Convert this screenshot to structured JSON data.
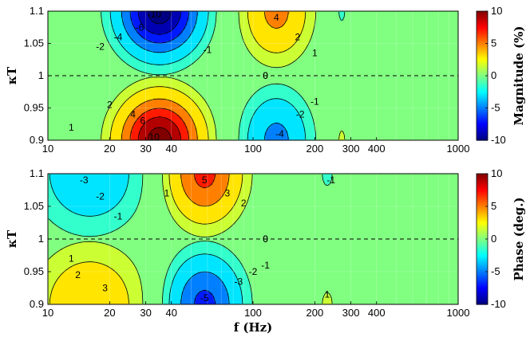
{
  "chart_data": [
    {
      "type": "heatmap",
      "name": "magnitude",
      "x_scale": "log",
      "xlim": [
        10,
        1000
      ],
      "ylim": [
        0.9,
        1.1
      ],
      "xticks": [
        "10",
        "20",
        "30",
        "40",
        "100",
        "200",
        "300",
        "400",
        "1000"
      ],
      "xtick_values": [
        10,
        20,
        30,
        40,
        100,
        200,
        300,
        400,
        1000
      ],
      "yticks": [
        "0.9",
        "0.95",
        "1",
        "1.05",
        "1.1"
      ],
      "ylabel": "κT",
      "xlabel": "",
      "colorbar_label": "Magnitude (%)",
      "colorbar_ticks": [
        "10",
        "5",
        "0",
        "-5",
        "-10"
      ],
      "clim": [
        -10,
        10
      ],
      "grid": true,
      "reference_line_label": "0",
      "contour_labels": [
        {
          "text": "-10",
          "f": 33,
          "k": 1.095
        },
        {
          "text": "-6",
          "f": 28,
          "k": 1.075
        },
        {
          "text": "-4",
          "f": 22,
          "k": 1.06
        },
        {
          "text": "-2",
          "f": 18,
          "k": 1.045
        },
        {
          "text": "-1",
          "f": 60,
          "k": 1.04
        },
        {
          "text": "4",
          "f": 130,
          "k": 1.09
        },
        {
          "text": "2",
          "f": 165,
          "k": 1.06
        },
        {
          "text": "1",
          "f": 200,
          "k": 1.035
        },
        {
          "text": "0",
          "f": 115,
          "k": 1.0
        },
        {
          "text": "1",
          "f": 13,
          "k": 0.92
        },
        {
          "text": "2",
          "f": 20,
          "k": 0.955
        },
        {
          "text": "4",
          "f": 26,
          "k": 0.94
        },
        {
          "text": "6",
          "f": 29,
          "k": 0.93
        },
        {
          "text": "10",
          "f": 33,
          "k": 0.905
        },
        {
          "text": "-1",
          "f": 200,
          "k": 0.96
        },
        {
          "text": "-2",
          "f": 170,
          "k": 0.94
        },
        {
          "text": "-4",
          "f": 135,
          "k": 0.91
        }
      ]
    },
    {
      "type": "heatmap",
      "name": "phase",
      "x_scale": "log",
      "xlim": [
        10,
        1000
      ],
      "ylim": [
        0.9,
        1.1
      ],
      "xticks": [
        "10",
        "20",
        "30",
        "40",
        "100",
        "200",
        "300",
        "400",
        "1000"
      ],
      "xtick_values": [
        10,
        20,
        30,
        40,
        100,
        200,
        300,
        400,
        1000
      ],
      "yticks": [
        "0.9",
        "0.95",
        "1",
        "1.05",
        "1.1"
      ],
      "ylabel": "κT",
      "xlabel": "f (Hz)",
      "colorbar_label": "Phase (deg.)",
      "colorbar_ticks": [
        "10",
        "5",
        "0",
        "-5",
        "-10"
      ],
      "clim": [
        -10,
        10
      ],
      "grid": true,
      "reference_line_label": "0",
      "contour_labels": [
        {
          "text": "-3",
          "f": 15,
          "k": 1.09
        },
        {
          "text": "-2",
          "f": 18,
          "k": 1.065
        },
        {
          "text": "-1",
          "f": 22,
          "k": 1.035
        },
        {
          "text": "1",
          "f": 38,
          "k": 1.07
        },
        {
          "text": "5",
          "f": 58,
          "k": 1.09
        },
        {
          "text": "3",
          "f": 75,
          "k": 1.07
        },
        {
          "text": "2",
          "f": 90,
          "k": 1.055
        },
        {
          "text": "-1",
          "f": 240,
          "k": 1.09
        },
        {
          "text": "0",
          "f": 115,
          "k": 1.0
        },
        {
          "text": "1",
          "f": 13,
          "k": 0.97
        },
        {
          "text": "2",
          "f": 14,
          "k": 0.945
        },
        {
          "text": "3",
          "f": 19,
          "k": 0.925
        },
        {
          "text": "-1",
          "f": 115,
          "k": 0.96
        },
        {
          "text": "-2",
          "f": 100,
          "k": 0.95
        },
        {
          "text": "-3",
          "f": 85,
          "k": 0.935
        },
        {
          "text": "-5",
          "f": 58,
          "k": 0.91
        },
        {
          "text": "1",
          "f": 230,
          "k": 0.915
        }
      ]
    }
  ]
}
